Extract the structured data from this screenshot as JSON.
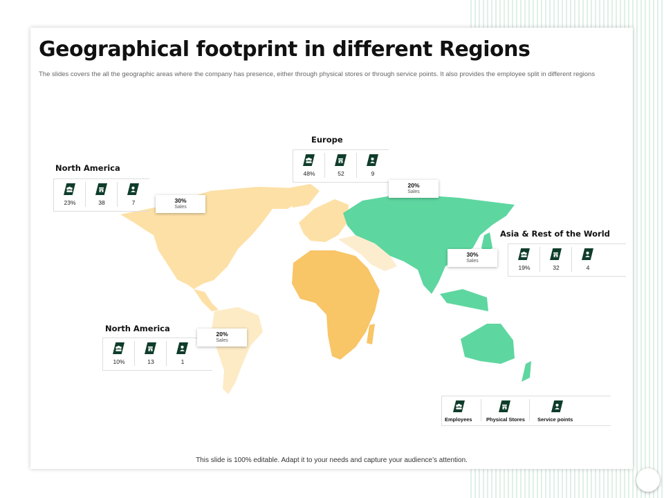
{
  "slide": {
    "title": "Geographical footprint in different Regions",
    "description": "The slides covers the all the geographic areas where the company has presence, either through physical stores or through service points. It also provides the employee split in different regions",
    "footer": "This slide is 100% editable. Adapt it to your needs and capture your audience’s attention."
  },
  "colors": {
    "icon_bg": "#0f3d2b",
    "asia": "#5ed6a0",
    "africa": "#f8c567",
    "america": "#fde0a6",
    "middle_east": "#fcedcf"
  },
  "regions": [
    {
      "name": "North America",
      "employees": "23%",
      "stores": "38",
      "service": "7",
      "sales_pct": "30%",
      "sales_label": "Sales"
    },
    {
      "name": "Europe",
      "employees": "48%",
      "stores": "52",
      "service": "9",
      "sales_pct": "20%",
      "sales_label": "Sales"
    },
    {
      "name": "Asia & Rest of the World",
      "employees": "19%",
      "stores": "32",
      "service": "4",
      "sales_pct": "30%",
      "sales_label": "Sales"
    },
    {
      "name": "North America",
      "employees": "10%",
      "stores": "13",
      "service": "1",
      "sales_pct": "20%",
      "sales_label": "Sales"
    }
  ],
  "legend": {
    "employees": "Employees",
    "stores": "Physical Stores",
    "service": "Service points"
  },
  "icons": {
    "employees": "people-icon",
    "stores": "store-icon",
    "service": "service-person-icon"
  }
}
